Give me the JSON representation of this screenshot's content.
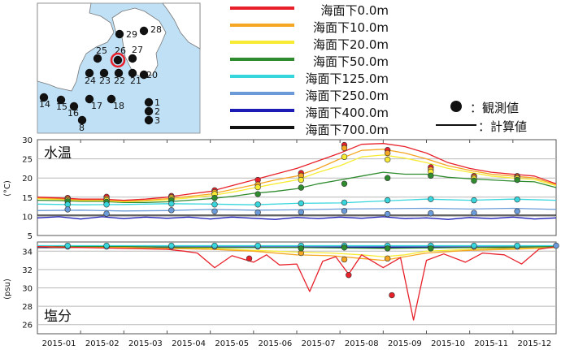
{
  "map": {
    "stations": [
      "29",
      "28",
      "25",
      "26",
      "27",
      "24",
      "23",
      "22",
      "21",
      "20",
      "14",
      "15",
      "16",
      "17",
      "18",
      "1",
      "2",
      "3",
      "8"
    ],
    "selected_station": "26",
    "colors": {
      "sea": "#bfe0f5",
      "land": "#ffffff",
      "dot": "#111111",
      "highlight": "#e8202a"
    }
  },
  "legend": {
    "lines": [
      {
        "label": "海面下0.0m",
        "color": "#e8202a"
      },
      {
        "label": "海面下10.0m",
        "color": "#f5a623"
      },
      {
        "label": "海面下20.0m",
        "color": "#f7ec33"
      },
      {
        "label": "海面下50.0m",
        "color": "#2e8b2e"
      },
      {
        "label": "海面下125.0m",
        "color": "#36d6dc"
      },
      {
        "label": "海面下250.0m",
        "color": "#6a9ad8"
      },
      {
        "label": "海面下400.0m",
        "color": "#1c1cb5"
      },
      {
        "label": "海面下700.0m",
        "color": "#111111"
      }
    ],
    "observed_label": "：観測値",
    "computed_label": "：計算値"
  },
  "chart_data": [
    {
      "type": "line",
      "title": "水温",
      "ylabel": "(°C)",
      "ylim": [
        5,
        30
      ],
      "yticks": [
        5,
        10,
        15,
        20,
        25,
        30
      ],
      "grid": true,
      "series": [
        {
          "name": "海面下0.0m",
          "color": "#e8202a",
          "x": [
            0,
            0.5,
            1,
            1.5,
            2,
            2.5,
            3,
            3.5,
            4,
            4.5,
            5,
            5.5,
            6,
            6.5,
            7,
            7.5,
            8,
            8.5,
            9,
            9.5,
            10,
            10.5,
            11,
            11.5,
            12
          ],
          "values": [
            15,
            14.8,
            14.5,
            14.5,
            14.2,
            14.5,
            15,
            15.8,
            16.5,
            18,
            19.5,
            21,
            22.5,
            24.5,
            26.5,
            28.8,
            29,
            28.2,
            26.5,
            24,
            22.5,
            21.5,
            21,
            20.5,
            18.5
          ]
        },
        {
          "name": "海面下10.0m",
          "color": "#f5a623",
          "x": [
            0,
            0.5,
            1,
            1.5,
            2,
            2.5,
            3,
            3.5,
            4,
            4.5,
            5,
            5.5,
            6,
            6.5,
            7,
            7.5,
            8,
            8.5,
            9,
            9.5,
            10,
            10.5,
            11,
            11.5,
            12
          ],
          "values": [
            14.8,
            14.6,
            14.3,
            14.3,
            14,
            14.2,
            14.6,
            15.2,
            15.8,
            17,
            18.2,
            19.5,
            20.5,
            22.5,
            25,
            27.2,
            27.5,
            26.5,
            25,
            23.2,
            22,
            21,
            20.5,
            20,
            18.3
          ]
        },
        {
          "name": "海面下20.0m",
          "color": "#f7ec33",
          "x": [
            0,
            0.5,
            1,
            1.5,
            2,
            2.5,
            3,
            3.5,
            4,
            4.5,
            5,
            5.5,
            6,
            6.5,
            7,
            7.5,
            8,
            8.5,
            9,
            9.5,
            10,
            10.5,
            11,
            11.5,
            12
          ],
          "values": [
            14.6,
            14.4,
            14.1,
            14.1,
            13.8,
            14,
            14.3,
            14.8,
            15.4,
            16.3,
            17.4,
            18.5,
            19.5,
            21.5,
            23.2,
            25.5,
            26,
            25.2,
            24,
            22.5,
            21.5,
            20.5,
            20,
            19.6,
            18
          ]
        },
        {
          "name": "海面下50.0m",
          "color": "#2e8b2e",
          "x": [
            0,
            0.5,
            1,
            1.5,
            2,
            2.5,
            3,
            3.5,
            4,
            4.5,
            5,
            5.5,
            6,
            6.5,
            7,
            7.5,
            8,
            8.5,
            9,
            9.5,
            10,
            10.5,
            11,
            11.5,
            12
          ],
          "values": [
            14.2,
            14.1,
            13.9,
            13.9,
            13.6,
            13.6,
            13.8,
            14.2,
            14.6,
            15.2,
            16,
            16.5,
            17.2,
            18.5,
            19.5,
            20.5,
            21.5,
            21,
            21,
            20.2,
            19.8,
            19.5,
            19.2,
            19,
            17.5
          ]
        },
        {
          "name": "海面下125.0m",
          "color": "#36d6dc",
          "x": [
            0,
            1,
            2,
            3,
            4,
            5,
            6,
            7,
            8,
            9,
            10,
            11,
            12
          ],
          "values": [
            13.2,
            13,
            13.1,
            13.3,
            13.2,
            13,
            13.4,
            13.5,
            14,
            14.5,
            14.2,
            14.5,
            14.2
          ]
        },
        {
          "name": "海面下250.0m",
          "color": "#6a9ad8",
          "x": [
            0,
            1,
            2,
            3,
            4,
            5,
            6,
            7,
            8,
            9,
            10,
            11,
            12
          ],
          "values": [
            11.5,
            11.6,
            11.4,
            11.5,
            11.8,
            11.6,
            11.7,
            11.9,
            12,
            12.1,
            11.9,
            12.1,
            11.8
          ]
        },
        {
          "name": "海面下400.0m",
          "color": "#1c1cb5",
          "x": [
            0,
            0.5,
            1,
            1.5,
            2,
            2.5,
            3,
            3.5,
            4,
            4.5,
            5,
            5.5,
            6,
            6.5,
            7,
            7.5,
            8,
            8.5,
            9,
            9.5,
            10,
            10.5,
            11,
            11.5,
            12
          ],
          "values": [
            9.6,
            9.9,
            9.3,
            9.9,
            9.4,
            9.8,
            9.5,
            9.8,
            9.3,
            9.8,
            9.5,
            9.2,
            9.7,
            9.4,
            9.8,
            9.5,
            9.9,
            9.4,
            9.6,
            9.2,
            9.7,
            9.4,
            9.8,
            9.3,
            9.6
          ]
        },
        {
          "name": "海面下700.0m",
          "color": "#111111",
          "x": [
            0,
            12
          ],
          "values": [
            10.3,
            10.3
          ]
        }
      ],
      "observed": [
        {
          "color": "#e8202a",
          "points": [
            [
              0.7,
              14.8
            ],
            [
              1.6,
              15.1
            ],
            [
              3.1,
              15.3
            ],
            [
              4.1,
              16.8
            ],
            [
              5.1,
              19.5
            ],
            [
              6.1,
              21.3
            ],
            [
              7.1,
              28.6
            ],
            [
              8.1,
              27.3
            ],
            [
              9.1,
              22.8
            ],
            [
              10.1,
              20.5
            ],
            [
              11.1,
              20.5
            ]
          ]
        },
        {
          "color": "#f5a623",
          "points": [
            [
              0.7,
              14.5
            ],
            [
              1.6,
              14.6
            ],
            [
              3.1,
              15
            ],
            [
              4.1,
              16.3
            ],
            [
              5.1,
              18.3
            ],
            [
              6.1,
              20.6
            ],
            [
              7.1,
              27.8
            ],
            [
              8.1,
              26.5
            ],
            [
              9.1,
              22.2
            ],
            [
              10.1,
              20.2
            ],
            [
              11.1,
              20.2
            ]
          ]
        },
        {
          "color": "#f7ec33",
          "points": [
            [
              0.7,
              14.2
            ],
            [
              1.6,
              14.2
            ],
            [
              3.1,
              14.6
            ],
            [
              4.1,
              15.8
            ],
            [
              5.1,
              17.6
            ],
            [
              6.1,
              19.5
            ],
            [
              7.1,
              25.5
            ],
            [
              8.1,
              24.8
            ],
            [
              9.1,
              21.6
            ],
            [
              10.1,
              19.8
            ],
            [
              11.1,
              19.9
            ]
          ]
        },
        {
          "color": "#2e8b2e",
          "points": [
            [
              0.7,
              13.9
            ],
            [
              1.6,
              13.8
            ],
            [
              3.1,
              14.2
            ],
            [
              4.1,
              14.8
            ],
            [
              5.1,
              15.8
            ],
            [
              6.1,
              17.5
            ],
            [
              7.1,
              18.5
            ],
            [
              8.1,
              20
            ],
            [
              9.1,
              20.6
            ],
            [
              10.1,
              19.3
            ],
            [
              11.1,
              19.5
            ]
          ]
        },
        {
          "color": "#36d6dc",
          "points": [
            [
              0.7,
              13.1
            ],
            [
              1.6,
              13.1
            ],
            [
              3.1,
              13.3
            ],
            [
              4.1,
              13.1
            ],
            [
              5.1,
              13.1
            ],
            [
              6.1,
              13.4
            ],
            [
              7.1,
              13.6
            ],
            [
              8.1,
              14.2
            ],
            [
              9.1,
              14.5
            ],
            [
              10.1,
              14.2
            ],
            [
              11.1,
              14.4
            ]
          ]
        },
        {
          "color": "#6a9ad8",
          "points": [
            [
              0.7,
              11.8
            ],
            [
              1.6,
              10.7
            ],
            [
              3.1,
              11.6
            ],
            [
              4.1,
              11.3
            ],
            [
              5.1,
              11
            ],
            [
              6.1,
              11.1
            ],
            [
              7.1,
              11.4
            ],
            [
              8.1,
              10.6
            ],
            [
              9.1,
              10.8
            ],
            [
              10.1,
              10.9
            ],
            [
              11.1,
              11.3
            ]
          ]
        }
      ]
    },
    {
      "type": "line",
      "title": "塩分",
      "ylabel": "(psu)",
      "ylim": [
        25,
        35
      ],
      "yticks": [
        26,
        28,
        30,
        32,
        34
      ],
      "grid": true,
      "series": [
        {
          "name": "海面下0.0m",
          "color": "#e8202a",
          "x": [
            0,
            1,
            2,
            3,
            3.4,
            3.7,
            4.1,
            4.5,
            5,
            5.3,
            5.6,
            6,
            6.3,
            6.6,
            6.9,
            7.2,
            7.5,
            8,
            8.4,
            8.7,
            9,
            9.4,
            9.9,
            10.3,
            10.8,
            11.2,
            11.6,
            12
          ],
          "values": [
            34.5,
            34.4,
            34.3,
            34.2,
            34,
            33.8,
            32.2,
            33.5,
            32.8,
            33.6,
            32.5,
            32.6,
            29.6,
            32.9,
            33.4,
            31.5,
            33.6,
            32.2,
            33.3,
            26.5,
            33,
            33.7,
            32.8,
            33.8,
            33.6,
            32.6,
            34.2,
            34.5
          ]
        },
        {
          "name": "海面下10.0m",
          "color": "#f5a623",
          "x": [
            0,
            1,
            2,
            3,
            4,
            5,
            6,
            6.8,
            7.5,
            8,
            8.5,
            9,
            10,
            11,
            12
          ],
          "values": [
            34.5,
            34.4,
            34.4,
            34.3,
            34.2,
            34,
            33.6,
            33.5,
            33.2,
            33,
            33.4,
            33.8,
            34.1,
            34.2,
            34.4
          ]
        },
        {
          "name": "海面下20.0m",
          "color": "#f7ec33",
          "x": [
            0,
            1,
            2,
            3,
            4,
            5,
            6,
            6.8,
            7.5,
            8,
            8.5,
            9,
            10,
            11,
            12
          ],
          "values": [
            34.5,
            34.4,
            34.4,
            34.3,
            34.3,
            34.1,
            33.9,
            33.8,
            33.6,
            33.4,
            33.6,
            34,
            34.2,
            34.3,
            34.4
          ]
        },
        {
          "name": "海面下50.0m",
          "color": "#2e8b2e",
          "x": [
            0,
            2,
            4,
            6,
            8,
            10,
            12
          ],
          "values": [
            34.5,
            34.5,
            34.4,
            34.4,
            34.3,
            34.4,
            34.5
          ]
        },
        {
          "name": "海面下125.0m",
          "color": "#36d6dc",
          "x": [
            0,
            12
          ],
          "values": [
            34.6,
            34.6
          ]
        },
        {
          "name": "海面下250.0m",
          "color": "#6a9ad8",
          "x": [
            0,
            12
          ],
          "values": [
            34.55,
            34.55
          ]
        },
        {
          "name": "海面下400.0m",
          "color": "#1c1cb5",
          "x": [
            0,
            12
          ],
          "values": [
            34.45,
            34.45
          ]
        },
        {
          "name": "海面下700.0m",
          "color": "#111111",
          "x": [
            0,
            12
          ],
          "values": [
            34.4,
            34.4
          ]
        }
      ],
      "observed": [
        {
          "color": "#e8202a",
          "points": [
            [
              4.9,
              33.2
            ],
            [
              7.2,
              31.4
            ],
            [
              8.2,
              29.2
            ]
          ]
        },
        {
          "color": "#f5a623",
          "points": [
            [
              6.1,
              33.8
            ],
            [
              7.1,
              33.1
            ],
            [
              8.1,
              33.2
            ]
          ]
        },
        {
          "color": "#6a9ad8",
          "points": [
            [
              0.7,
              34.5
            ],
            [
              1.6,
              34.5
            ],
            [
              3.1,
              34.5
            ],
            [
              4.1,
              34.5
            ],
            [
              5.1,
              34.5
            ],
            [
              6.1,
              34.5
            ],
            [
              7.1,
              34.5
            ],
            [
              8.1,
              34.5
            ],
            [
              9.1,
              34.5
            ],
            [
              10.1,
              34.5
            ],
            [
              11.1,
              34.5
            ],
            [
              12,
              34.6
            ]
          ]
        },
        {
          "color": "#36d6dc",
          "points": [
            [
              0.7,
              34.6
            ],
            [
              1.6,
              34.6
            ],
            [
              3.1,
              34.6
            ],
            [
              4.1,
              34.6
            ],
            [
              5.1,
              34.6
            ],
            [
              6.1,
              34.6
            ],
            [
              7.1,
              34.6
            ],
            [
              8.1,
              34.6
            ],
            [
              9.1,
              34.6
            ],
            [
              10.1,
              34.6
            ],
            [
              11.1,
              34.6
            ]
          ]
        },
        {
          "color": "#2e8b2e",
          "points": [
            [
              6.1,
              34.3
            ],
            [
              7.1,
              34.4
            ],
            [
              8.1,
              34.3
            ],
            [
              9.1,
              34.3
            ]
          ]
        }
      ]
    }
  ],
  "x_axis": {
    "ticks": [
      "2015-01",
      "2015-02",
      "2015-03",
      "2015-04",
      "2015-05",
      "2015-06",
      "2015-07",
      "2015-08",
      "2015-09",
      "2015-10",
      "2015-11",
      "2015-12"
    ]
  }
}
